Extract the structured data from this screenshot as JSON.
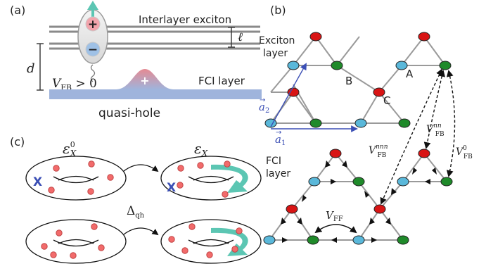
{
  "colors": {
    "site_a": "#1f8a2a",
    "site_b": "#5ab8da",
    "site_c": "#d81414",
    "fci_layer": "#9fb4dc",
    "interlayer_lines": "#8a8a8a",
    "arrow_teal": "#5cc6b3",
    "quasi_hole_peak": "#e58a93",
    "lattice_vector": "#3b4fb5",
    "particle": "#f26b6b"
  },
  "icons": {
    "exciton": "exciton-ellipse-icon",
    "quasi_hole": "gaussian-peak-icon",
    "torus": "torus-icon",
    "impurity": "x-mark-icon"
  },
  "panel_a": {
    "label": "(a)",
    "exciton_label": "Interlayer exciton",
    "plus": "+",
    "minus": "−",
    "d": "d",
    "ell": "ℓ",
    "vfb_V": "V",
    "vfb_sub": "FB",
    "vfb_rest": " > 0",
    "qh_plus": "+",
    "fci_layer": "FCI layer",
    "quasi_hole": "quasi-hole"
  },
  "panel_b": {
    "label": "(b)",
    "exciton_layer_line1": "Exciton",
    "exciton_layer_line2": "layer",
    "fci_layer_line1": "FCI",
    "fci_layer_line2": "layer",
    "site_a": "A",
    "site_b": "B",
    "site_c": "C",
    "a1": "a",
    "a1_sub": "1",
    "a2": "a",
    "a2_sub": "2",
    "v_ff": "V",
    "v_ff_sub": "FF",
    "v_nnn": "V",
    "v_nnn_sub": "FB",
    "v_nnn_sup": "nnn",
    "v_nn": "V",
    "v_nn_sub": "FB",
    "v_nn_sup": "nn",
    "v_0": "V",
    "v_0_sub": "FB",
    "v_0_sup": "0"
  },
  "panel_c": {
    "label": "(c)",
    "eps0_sym": "ε",
    "eps0_sub": "X",
    "eps0_sup": "0",
    "eps_sym": "ε",
    "eps_sub": "X",
    "delta_sym": "Δ",
    "delta_sub": "qh",
    "x_mark": "X"
  }
}
